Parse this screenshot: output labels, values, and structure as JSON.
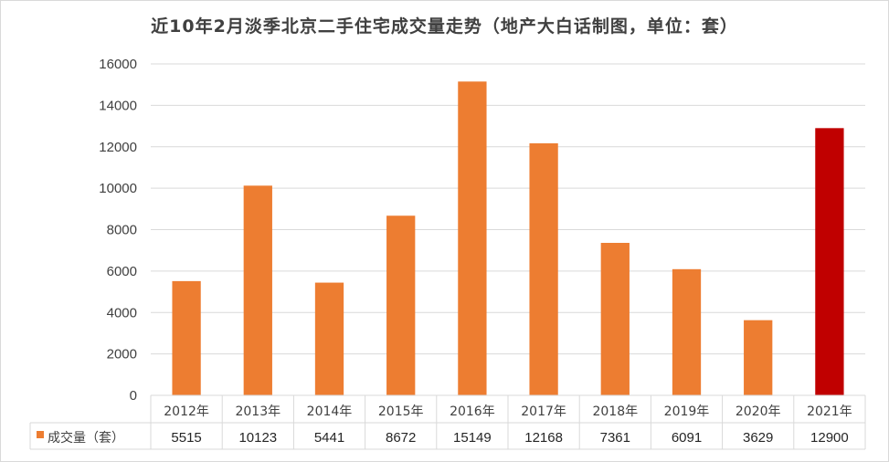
{
  "chart_data": {
    "type": "bar",
    "title": "近10年2月淡季北京二手住宅成交量走势（地产大白话制图，单位：套）",
    "categories": [
      "2012年",
      "2013年",
      "2014年",
      "2015年",
      "2016年",
      "2017年",
      "2018年",
      "2019年",
      "2020年",
      "2021年"
    ],
    "series": [
      {
        "name": "成交量（套）",
        "values": [
          5515,
          10123,
          5441,
          8672,
          15149,
          12168,
          7361,
          6091,
          3629,
          12900
        ]
      }
    ],
    "colors": {
      "bar": "#ed7d31",
      "highlight": "#c00000",
      "highlight_index": 9
    },
    "ylim": [
      0,
      16000
    ],
    "yticks": [
      0,
      2000,
      4000,
      6000,
      8000,
      10000,
      12000,
      14000,
      16000
    ],
    "grid": true,
    "data_table": true
  }
}
